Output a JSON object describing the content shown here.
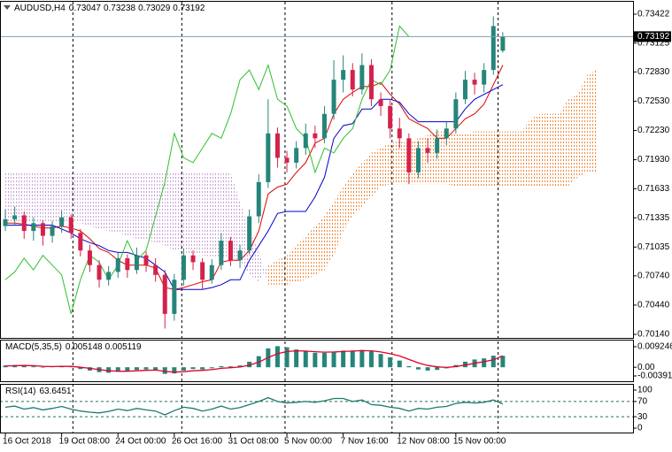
{
  "chart_data": [
    {
      "type": "candlestick",
      "title": "AUDUSD,H4",
      "xlim": [
        -0.57,
        66.88
      ],
      "xticks": [
        {
          "value": 0,
          "label": "16 Oct 2018"
        },
        {
          "value": 6,
          "label": "19 Oct 08:00"
        },
        {
          "value": 12,
          "label": "24 Oct 00:00"
        },
        {
          "value": 18,
          "label": "26 Oct 16:00"
        },
        {
          "value": 24,
          "label": "31 Oct 08:00"
        },
        {
          "value": 30,
          "label": "5 Nov 00:00"
        },
        {
          "value": 36,
          "label": "7 Nov 16:00"
        },
        {
          "value": 42,
          "label": "12 Nov 08:00"
        },
        {
          "value": 48,
          "label": "15 Nov 00:00"
        }
      ],
      "period_separators": [
        7.2,
        18.8,
        29.8,
        41.2,
        52.5
      ],
      "ylim": [
        0.70095,
        0.73549
      ],
      "yticks": [
        0.73422,
        0.73125,
        {
          "value": 0.7283,
          "label": "0.72830"
        },
        {
          "value": 0.7253,
          "label": "0.72530"
        },
        {
          "value": 0.7223,
          "label": "0.72230"
        },
        {
          "value": 0.7193,
          "label": "0.71930"
        },
        0.71633,
        0.71335,
        0.71035,
        {
          "value": 0.7074,
          "label": "0.70740"
        },
        {
          "value": 0.7044,
          "label": "0.70440"
        },
        {
          "value": 0.7014,
          "label": "0.70140"
        }
      ],
      "up_color": "#26857a",
      "down_color": "#d4224c",
      "open": [
        0.7125,
        0.7132,
        0.7136,
        0.712,
        0.7128,
        0.7115,
        0.7125,
        0.7134,
        0.7118,
        0.71,
        0.7085,
        0.707,
        0.7078,
        0.7092,
        0.708,
        0.7095,
        0.7085,
        0.7075,
        0.7035,
        0.707,
        0.7095,
        0.7088,
        0.707,
        0.7085,
        0.711,
        0.709,
        0.71,
        0.7135,
        0.717,
        0.722,
        0.7195,
        0.719,
        0.7205,
        0.722,
        0.7215,
        0.724,
        0.7275,
        0.7285,
        0.7265,
        0.729,
        0.7255,
        0.7248,
        0.7225,
        0.7215,
        0.718,
        0.7205,
        0.72,
        0.7215,
        0.7225,
        0.7255,
        0.7275,
        0.727,
        0.7285,
        0.73047
      ],
      "high": [
        0.7142,
        0.7145,
        0.714,
        0.7134,
        0.7131,
        0.713,
        0.7141,
        0.7137,
        0.7122,
        0.7106,
        0.709,
        0.7084,
        0.7098,
        0.7096,
        0.7103,
        0.7099,
        0.7092,
        0.708,
        0.7076,
        0.7102,
        0.71,
        0.7092,
        0.7091,
        0.7118,
        0.7114,
        0.7106,
        0.7142,
        0.7178,
        0.7255,
        0.7226,
        0.7202,
        0.7212,
        0.723,
        0.7228,
        0.7248,
        0.7295,
        0.73,
        0.7292,
        0.7302,
        0.7296,
        0.7262,
        0.7254,
        0.7236,
        0.722,
        0.7212,
        0.7215,
        0.7224,
        0.7232,
        0.7262,
        0.7284,
        0.7282,
        0.7292,
        0.734,
        0.73238
      ],
      "low": [
        0.712,
        0.7126,
        0.7112,
        0.711,
        0.7105,
        0.7108,
        0.7118,
        0.7112,
        0.7094,
        0.7078,
        0.7062,
        0.7064,
        0.7072,
        0.7072,
        0.7076,
        0.7078,
        0.7068,
        0.702,
        0.7028,
        0.7064,
        0.708,
        0.706,
        0.7066,
        0.708,
        0.7084,
        0.7082,
        0.7096,
        0.7128,
        0.7164,
        0.7185,
        0.718,
        0.7184,
        0.7198,
        0.7205,
        0.721,
        0.7234,
        0.7262,
        0.7258,
        0.726,
        0.7248,
        0.7238,
        0.7215,
        0.7205,
        0.7168,
        0.7174,
        0.719,
        0.7194,
        0.7208,
        0.722,
        0.725,
        0.726,
        0.7262,
        0.728,
        0.73029
      ],
      "close": [
        0.7132,
        0.7136,
        0.712,
        0.7128,
        0.7115,
        0.7125,
        0.7134,
        0.7118,
        0.71,
        0.7085,
        0.707,
        0.7078,
        0.7092,
        0.708,
        0.7095,
        0.7085,
        0.7075,
        0.7035,
        0.707,
        0.7095,
        0.7088,
        0.707,
        0.7085,
        0.711,
        0.709,
        0.71,
        0.7135,
        0.717,
        0.722,
        0.7195,
        0.719,
        0.7205,
        0.722,
        0.7215,
        0.724,
        0.7275,
        0.7285,
        0.7265,
        0.729,
        0.7255,
        0.7248,
        0.7225,
        0.7215,
        0.718,
        0.7205,
        0.72,
        0.7215,
        0.7225,
        0.7255,
        0.7275,
        0.727,
        0.7285,
        0.733,
        0.73192
      ],
      "cloud": {
        "up_color": "#f08a3c",
        "down_color": "#c9a2d6",
        "span_a": [
          0.7128,
          0.7128,
          0.7128,
          0.7128,
          0.7128,
          0.7128,
          0.7128,
          0.7128,
          0.7128,
          0.7125,
          0.7122,
          0.712,
          0.7118,
          0.7115,
          0.7112,
          0.711,
          0.7108,
          0.7105,
          0.71,
          0.7098,
          0.7096,
          0.7095,
          0.7094,
          0.7094,
          0.7092,
          0.709,
          0.7075,
          0.7068,
          0.7085,
          0.709,
          0.7095,
          0.7105,
          0.7115,
          0.7125,
          0.7135,
          0.715,
          0.7165,
          0.7178,
          0.719,
          0.72,
          0.7205,
          0.721,
          0.7212,
          0.721,
          0.7215,
          0.7218,
          0.7222,
          0.7222,
          0.722,
          0.722,
          0.7222,
          0.7222,
          0.7222,
          0.7222,
          0.7222,
          0.7222,
          0.7235,
          0.724,
          0.724,
          0.724,
          0.7255,
          0.726,
          0.728,
          0.7285
        ],
        "span_b": [
          0.718,
          0.718,
          0.718,
          0.718,
          0.718,
          0.718,
          0.718,
          0.718,
          0.718,
          0.718,
          0.718,
          0.718,
          0.718,
          0.718,
          0.718,
          0.718,
          0.718,
          0.718,
          0.718,
          0.718,
          0.718,
          0.718,
          0.718,
          0.718,
          0.718,
          0.715,
          0.712,
          0.71,
          0.7065,
          0.7065,
          0.7065,
          0.7068,
          0.707,
          0.7075,
          0.708,
          0.7095,
          0.712,
          0.7135,
          0.7145,
          0.7155,
          0.7165,
          0.7168,
          0.7168,
          0.7168,
          0.7168,
          0.7168,
          0.7168,
          0.7168,
          0.7166,
          0.7166,
          0.7166,
          0.7166,
          0.7166,
          0.7166,
          0.7166,
          0.7166,
          0.7166,
          0.7166,
          0.7166,
          0.7166,
          0.7166,
          0.7175,
          0.718,
          0.718
        ]
      },
      "lines": [
        {
          "color": "#e00000",
          "values": [
            0.7128,
            0.7128,
            0.7127,
            0.7125,
            0.7123,
            0.7123,
            0.7125,
            0.7123,
            0.712,
            0.7112,
            0.7102,
            0.7098,
            0.709,
            0.7085,
            0.7085,
            0.7085,
            0.7082,
            0.7062,
            0.706,
            0.7062,
            0.7065,
            0.7068,
            0.707,
            0.7088,
            0.709,
            0.709,
            0.71,
            0.712,
            0.7158,
            0.7165,
            0.7168,
            0.718,
            0.719,
            0.721,
            0.7215,
            0.724,
            0.7255,
            0.7262,
            0.7268,
            0.7268,
            0.7272,
            0.726,
            0.725,
            0.7235,
            0.723,
            0.7225,
            0.7215,
            0.7215,
            0.7225,
            0.7235,
            0.724,
            0.725,
            0.727,
            0.729
          ]
        },
        {
          "color": "#0000c8",
          "values": [
            0.7126,
            0.7126,
            0.7126,
            0.7126,
            0.7126,
            0.7126,
            0.7122,
            0.7118,
            0.7112,
            0.7108,
            0.7105,
            0.71,
            0.7098,
            0.7098,
            0.7095,
            0.7092,
            0.7085,
            0.7078,
            0.706,
            0.706,
            0.706,
            0.706,
            0.7062,
            0.7065,
            0.707,
            0.707,
            0.709,
            0.7105,
            0.712,
            0.7138,
            0.714,
            0.714,
            0.714,
            0.7155,
            0.7175,
            0.7215,
            0.7228,
            0.723,
            0.7245,
            0.7245,
            0.7255,
            0.7255,
            0.7252,
            0.724,
            0.7232,
            0.7232,
            0.7232,
            0.7232,
            0.7232,
            0.7245,
            0.7255,
            0.726,
            0.7265,
            0.727
          ]
        },
        {
          "color": "#2fbf2f",
          "values": [
            0.707,
            0.7078,
            0.7092,
            0.708,
            0.7095,
            0.7085,
            0.7075,
            0.7035,
            0.707,
            0.7095,
            0.7088,
            0.707,
            0.7085,
            0.711,
            0.709,
            0.71,
            0.7135,
            0.717,
            0.722,
            0.7195,
            0.719,
            0.7205,
            0.722,
            0.7215,
            0.724,
            0.7275,
            0.7285,
            0.7265,
            0.729,
            0.7255,
            0.7248,
            0.7225,
            0.7215,
            0.718,
            0.7205,
            0.72,
            0.7215,
            0.7225,
            0.7255,
            0.7275,
            0.727,
            0.7285,
            0.733,
            0.73192,
            null,
            null,
            null,
            null,
            null,
            null,
            null,
            null,
            null,
            null
          ]
        }
      ]
    },
    {
      "type": "macd",
      "title": "MACD(5,35,5)",
      "ylim": [
        -0.006709,
        0.012438
      ],
      "yticks": [
        0.009246,
        {
          "value": 0,
          "label": "0.00"
        },
        -0.003916
      ],
      "hist_color": "#26857a",
      "signal_color": "#e0002a",
      "hist": [
        0.0008,
        0.001,
        0.0006,
        0.0004,
        -0.0002,
        0.0002,
        0.0006,
        0.0002,
        -0.0008,
        -0.0015,
        -0.0022,
        -0.0025,
        -0.002,
        -0.0018,
        -0.0012,
        -0.001,
        -0.0012,
        -0.003,
        -0.0028,
        -0.0015,
        -0.0008,
        -0.001,
        -0.0005,
        0.0005,
        0.0004,
        0.0008,
        0.0025,
        0.005,
        0.0085,
        0.0095,
        0.009,
        0.008,
        0.0072,
        0.0065,
        0.0065,
        0.007,
        0.0075,
        0.0075,
        0.0078,
        0.0072,
        0.006,
        0.0045,
        0.003,
        0.0005,
        -0.001,
        -0.0015,
        -0.0012,
        -0.0005,
        0.001,
        0.0025,
        0.0035,
        0.004,
        0.0052,
        0.005148
      ],
      "signal": [
        0.0005,
        0.0007,
        0.0008,
        0.0007,
        0.0004,
        0.0003,
        0.0004,
        0.0004,
        0,
        -0.0005,
        -0.0011,
        -0.0016,
        -0.0018,
        -0.0018,
        -0.0016,
        -0.0014,
        -0.0013,
        -0.0019,
        -0.0022,
        -0.002,
        -0.0016,
        -0.0014,
        -0.0011,
        -0.0005,
        -0.0002,
        0.0001,
        0.0009,
        0.0023,
        0.0044,
        0.0061,
        0.0071,
        0.0074,
        0.0073,
        0.007,
        0.0068,
        0.0069,
        0.0071,
        0.0073,
        0.0075,
        0.0074,
        0.0069,
        0.0061,
        0.0051,
        0.0035,
        0.002,
        0.0008,
        0.0002,
        -0.0001,
        0.0003,
        0.001,
        0.0018,
        0.0025,
        0.0034,
        0.005119
      ]
    },
    {
      "type": "line",
      "title": "RSI(14)",
      "ylim": [
        -11.6,
        116.3
      ],
      "yticks": [
        100,
        70,
        30,
        0
      ],
      "levels": [
        70,
        30
      ],
      "color": "#1f7a6e",
      "values": [
        55,
        58,
        50,
        54,
        48,
        52,
        57,
        50,
        45,
        42,
        40,
        44,
        50,
        46,
        52,
        48,
        45,
        35,
        46,
        55,
        52,
        45,
        50,
        58,
        50,
        54,
        62,
        70,
        80,
        70,
        66,
        68,
        70,
        68,
        72,
        78,
        78,
        70,
        74,
        62,
        60,
        55,
        52,
        45,
        52,
        50,
        55,
        57,
        65,
        68,
        66,
        68,
        74,
        63.6451
      ]
    }
  ]
}
